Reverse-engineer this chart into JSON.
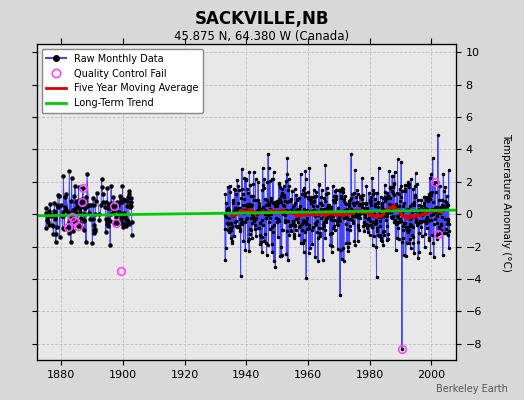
{
  "title": "SACKVILLE,NB",
  "subtitle": "45.875 N, 64.380 W (Canada)",
  "ylabel": "Temperature Anomaly (°C)",
  "xlim": [
    1872,
    2008
  ],
  "ylim": [
    -9,
    10.5
  ],
  "yticks": [
    -8,
    -6,
    -4,
    -2,
    0,
    2,
    4,
    6,
    8,
    10
  ],
  "xticks": [
    1880,
    1900,
    1920,
    1940,
    1960,
    1980,
    2000
  ],
  "background_color": "#d8d8d8",
  "plot_bg_color": "#e8e8e8",
  "grid_color": "#c0c0c0",
  "raw_line_color": "#4444ff",
  "raw_dot_color": "#000000",
  "moving_avg_color": "#dd0000",
  "trend_color": "#00cc00",
  "qc_fail_color": "#ff44ff",
  "watermark": "Berkeley Earth",
  "legend_labels": [
    "Raw Monthly Data",
    "Quality Control Fail",
    "Five Year Moving Average",
    "Long-Term Trend"
  ],
  "seed": 42
}
